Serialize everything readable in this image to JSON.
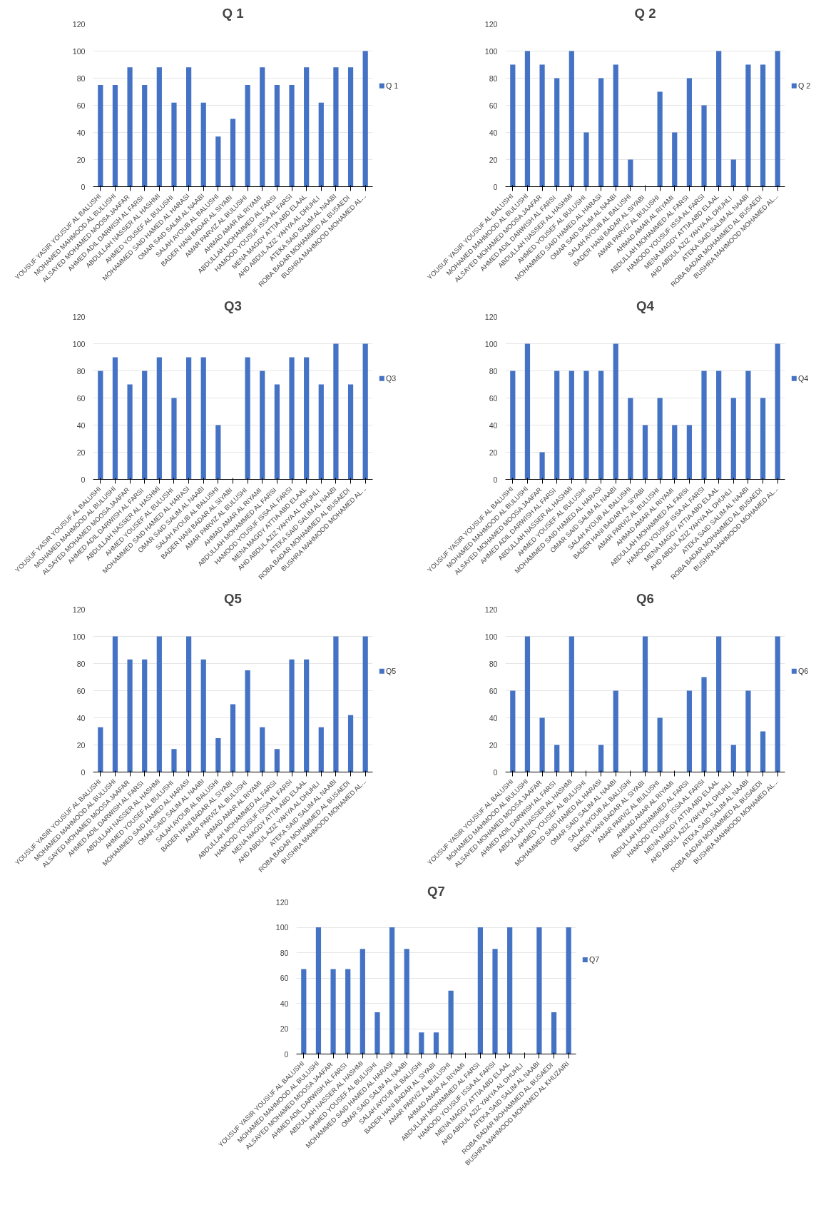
{
  "chart_data": [
    {
      "type": "bar",
      "title": "Q 1",
      "categories": [
        "YOUSUF YASIR YOUSUF AL BALUSHI",
        "MOHAMED MAHMOOD AL BULUSHI",
        "ALSAYED MOHAMED  MOOSA JAAFAR",
        "AHMED ADIL DARWISH  AL FARSI",
        "ABDULLAH NASSER AL HASHMI",
        "AHMED YOUSEF  AL BULUSHI",
        "MOHAMMED SAID HAMED AL HARASI",
        "OMAR SAID SALIM AL NAABI",
        "SALAH AYOUB AL BALUSHI",
        "BADER HANI BADAR  AL SIYABI",
        "AMAR PARVIZ  AL BULUSHI",
        "AHMAD AMAR  AL RIYAMI",
        "ABDULLAH MOHAMMED  AL FARSI",
        "HAMOOD YOUSUF ISSA AL FARSI",
        "MENA MAGDY ATTIA ABD ELAAL",
        "AHD ABDUL AZIZ YAHYA  AL DHUHLI",
        "ATEKA SAID SALIM AL NAABI",
        "ROBA BADAR MOHAMMED  AL BUSAEDI",
        "BUSHRA MAHMOOD MOHAMED AL..."
      ],
      "series": [
        {
          "name": "Q 1",
          "color": "#4472c4",
          "values": [
            75,
            75,
            88,
            75,
            88,
            62,
            88,
            62,
            37,
            50,
            75,
            88,
            75,
            75,
            88,
            62,
            88,
            88,
            100
          ]
        }
      ],
      "ylim": [
        0,
        120
      ],
      "yticks": [
        0,
        20,
        40,
        60,
        80,
        100,
        120
      ],
      "grid": "y",
      "legend": "right"
    },
    {
      "type": "bar",
      "title": "Q 2",
      "categories": [
        "YOUSUF YASIR YOUSUF AL BALUSHI",
        "MOHAMED MAHMOOD AL BULUSHI",
        "ALSAYED MOHAMED  MOOSA JAAFAR",
        "AHMED ADIL DARWISH  AL FARSI",
        "ABDULLAH NASSER AL HASHMI",
        "AHMED YOUSEF  AL BULUSHI",
        "MOHAMMED SAID HAMED AL HARASI",
        "OMAR SAID SALIM AL NAABI",
        "SALAH AYOUB AL BALUSHI",
        "BADER HANI BADAR  AL SIYABI",
        "AMAR PARVIZ  AL BULUSHI",
        "AHMAD AMAR  AL RIYAMI",
        "ABDULLAH MOHAMMED  AL FARSI",
        "HAMOOD YOUSUF ISSA AL FARSI",
        "MENA MAGDY ATTIA ABD ELAAL",
        "AHD ABDUL AZIZ YAHYA  AL DHUHLI",
        "ATEKA SAID SALIM AL NAABI",
        "ROBA BADAR MOHAMMED  AL BUSAEDI",
        "BUSHRA MAHMOOD MOHAMED AL..."
      ],
      "series": [
        {
          "name": "Q 2",
          "color": "#4472c4",
          "values": [
            90,
            100,
            90,
            80,
            100,
            40,
            80,
            90,
            20,
            0,
            70,
            40,
            80,
            60,
            100,
            20,
            90,
            90,
            100
          ]
        }
      ],
      "ylim": [
        0,
        120
      ],
      "yticks": [
        0,
        20,
        40,
        60,
        80,
        100,
        120
      ],
      "grid": "y",
      "legend": "right"
    },
    {
      "type": "bar",
      "title": "Q3",
      "categories": [
        "YOUSUF YASIR YOUSUF AL BALUSHI",
        "MOHAMED MAHMOOD AL BULUSHI",
        "ALSAYED MOHAMED  MOOSA JAAFAR",
        "AHMED ADIL DARWISH  AL FARSI",
        "ABDULLAH NASSER AL HASHMI",
        "AHMED YOUSEF  AL BULUSHI",
        "MOHAMMED SAID HAMED AL HARASI",
        "OMAR SAID SALIM AL NAABI",
        "SALAH AYOUB AL BALUSHI",
        "BADER HANI BADAR  AL SIYABI",
        "AMAR PARVIZ  AL BULUSHI",
        "AHMAD AMAR  AL RIYAMI",
        "ABDULLAH MOHAMMED  AL FARSI",
        "HAMOOD YOUSUF ISSA AL FARSI",
        "MENA MAGDY ATTIA ABD ELAAL",
        "AHD ABDUL AZIZ YAHYA  AL DHUHLI",
        "ATEKA SAID SALIM AL NAABI",
        "ROBA BADAR MOHAMMED  AL BUSAEDI",
        "BUSHRA MAHMOOD MOHAMED AL..."
      ],
      "series": [
        {
          "name": "Q3",
          "color": "#4472c4",
          "values": [
            80,
            90,
            70,
            80,
            90,
            60,
            90,
            90,
            40,
            0,
            90,
            80,
            70,
            90,
            90,
            70,
            100,
            70,
            100
          ]
        }
      ],
      "ylim": [
        0,
        120
      ],
      "yticks": [
        0,
        20,
        40,
        60,
        80,
        100,
        120
      ],
      "grid": "y",
      "legend": "right"
    },
    {
      "type": "bar",
      "title": "Q4",
      "categories": [
        "YOUSUF YASIR YOUSUF AL BALUSHI",
        "MOHAMED MAHMOOD AL BULUSHI",
        "ALSAYED MOHAMED  MOOSA JAAFAR",
        "AHMED ADIL DARWISH  AL FARSI",
        "ABDULLAH NASSER AL HASHMI",
        "AHMED YOUSEF  AL BULUSHI",
        "MOHAMMED SAID HAMED AL HARASI",
        "OMAR SAID SALIM AL NAABI",
        "SALAH AYOUB AL BALUSHI",
        "BADER HANI BADAR  AL SIYABI",
        "AMAR PARVIZ  AL BULUSHI",
        "AHMAD AMAR  AL RIYAMI",
        "ABDULLAH MOHAMMED  AL FARSI",
        "HAMOOD YOUSUF ISSA AL FARSI",
        "MENA MAGDY ATTIA ABD ELAAL",
        "AHD ABDUL AZIZ YAHYA  AL DHUHLI",
        "ATEKA SAID SALIM AL NAABI",
        "ROBA BADAR MOHAMMED  AL BUSAEDI",
        "BUSHRA MAHMOOD MOHAMED AL..."
      ],
      "series": [
        {
          "name": "Q4",
          "color": "#4472c4",
          "values": [
            80,
            100,
            20,
            80,
            80,
            80,
            80,
            100,
            60,
            40,
            60,
            40,
            40,
            80,
            80,
            60,
            80,
            60,
            100
          ]
        }
      ],
      "ylim": [
        0,
        120
      ],
      "yticks": [
        0,
        20,
        40,
        60,
        80,
        100,
        120
      ],
      "grid": "y",
      "legend": "right"
    },
    {
      "type": "bar",
      "title": "Q5",
      "categories": [
        "YOUSUF YASIR YOUSUF AL BALUSHI",
        "MOHAMED MAHMOOD AL BULUSHI",
        "ALSAYED MOHAMED  MOOSA JAAFAR",
        "AHMED ADIL DARWISH  AL FARSI",
        "ABDULLAH NASSER AL HASHMI",
        "AHMED YOUSEF  AL BULUSHI",
        "MOHAMMED SAID HAMED AL HARASI",
        "OMAR SAID SALIM AL NAABI",
        "SALAH AYOUB AL BALUSHI",
        "BADER HANI BADAR  AL SIYABI",
        "AMAR PARVIZ  AL BULUSHI",
        "AHMAD AMAR  AL RIYAMI",
        "ABDULLAH MOHAMMED  AL FARSI",
        "HAMOOD YOUSUF ISSA AL FARSI",
        "MENA MAGDY ATTIA ABD ELAAL",
        "AHD ABDUL AZIZ YAHYA  AL DHUHLI",
        "ATEKA SAID SALIM AL NAABI",
        "ROBA BADAR MOHAMMED  AL BUSAEDI",
        "BUSHRA MAHMOOD MOHAMED AL..."
      ],
      "series": [
        {
          "name": "Q5",
          "color": "#4472c4",
          "values": [
            33,
            100,
            83,
            83,
            100,
            17,
            100,
            83,
            25,
            50,
            75,
            33,
            17,
            83,
            83,
            33,
            100,
            42,
            100
          ]
        }
      ],
      "ylim": [
        0,
        120
      ],
      "yticks": [
        0,
        20,
        40,
        60,
        80,
        100,
        120
      ],
      "grid": "y",
      "legend": "right"
    },
    {
      "type": "bar",
      "title": "Q6",
      "categories": [
        "YOUSUF YASIR YOUSUF AL BALUSHI",
        "MOHAMED MAHMOOD AL BULUSHI",
        "ALSAYED MOHAMED  MOOSA JAAFAR",
        "AHMED ADIL DARWISH  AL FARSI",
        "ABDULLAH NASSER AL HASHMI",
        "AHMED YOUSEF  AL BULUSHI",
        "MOHAMMED SAID HAMED AL HARASI",
        "OMAR SAID SALIM AL NAABI",
        "SALAH AYOUB AL BALUSHI",
        "BADER HANI BADAR  AL SIYABI",
        "AMAR PARVIZ  AL BULUSHI",
        "AHMAD AMAR  AL RIYAMI",
        "ABDULLAH MOHAMMED  AL FARSI",
        "HAMOOD YOUSUF ISSA AL FARSI",
        "MENA MAGDY ATTIA ABD ELAAL",
        "AHD ABDUL AZIZ YAHYA  AL DHUHLI",
        "ATEKA SAID SALIM AL NAABI",
        "ROBA BADAR MOHAMMED  AL BUSAEDI",
        "BUSHRA MAHMOOD MOHAMED AL..."
      ],
      "series": [
        {
          "name": "Q6",
          "color": "#4472c4",
          "values": [
            60,
            100,
            40,
            20,
            100,
            0,
            20,
            60,
            0,
            100,
            40,
            0,
            60,
            70,
            100,
            20,
            60,
            30,
            100
          ]
        }
      ],
      "ylim": [
        0,
        120
      ],
      "yticks": [
        0,
        20,
        40,
        60,
        80,
        100,
        120
      ],
      "grid": "y",
      "legend": "right"
    },
    {
      "type": "bar",
      "title": "Q7",
      "categories": [
        "YOUSUF YASIR YOUSUF AL BALUSHI",
        "MOHAMED MAHMOOD AL BULUSHI",
        "ALSAYED MOHAMED  MOOSA JAAFAR",
        "AHMED ADIL DARWISH  AL FARSI",
        "ABDULLAH NASSER AL HASHMI",
        "AHMED YOUSEF  AL BULUSHI",
        "MOHAMMED SAID HAMED AL HARASI",
        "OMAR SAID SALIM AL NAABI",
        "SALAH AYOUB AL BALUSHI",
        "BADER HANI BADAR  AL SIYABI",
        "AMAR PARVIZ  AL BULUSHI",
        "AHMAD AMAR  AL RIYAMI",
        "ABDULLAH MOHAMMED  AL FARSI",
        "HAMOOD YOUSUF ISSA AL FARSI",
        "MENA MAGDY ATTIA ABD ELAAL",
        "AHD ABDUL AZIZ YAHYA  AL DHUHLI",
        "ATEKA SAID SALIM AL NAABI",
        "ROBA BADAR MOHAMMED  AL BUSAEDI",
        "BUSHRA MAHMOOD MOHAMED AL KHUZAIRI"
      ],
      "series": [
        {
          "name": "Q7",
          "color": "#4472c4",
          "values": [
            67,
            100,
            67,
            67,
            83,
            33,
            100,
            83,
            17,
            17,
            50,
            0,
            100,
            83,
            100,
            0,
            100,
            33,
            100
          ]
        }
      ],
      "ylim": [
        0,
        120
      ],
      "yticks": [
        0,
        20,
        40,
        60,
        80,
        100,
        120
      ],
      "grid": "y",
      "legend": "right"
    }
  ]
}
